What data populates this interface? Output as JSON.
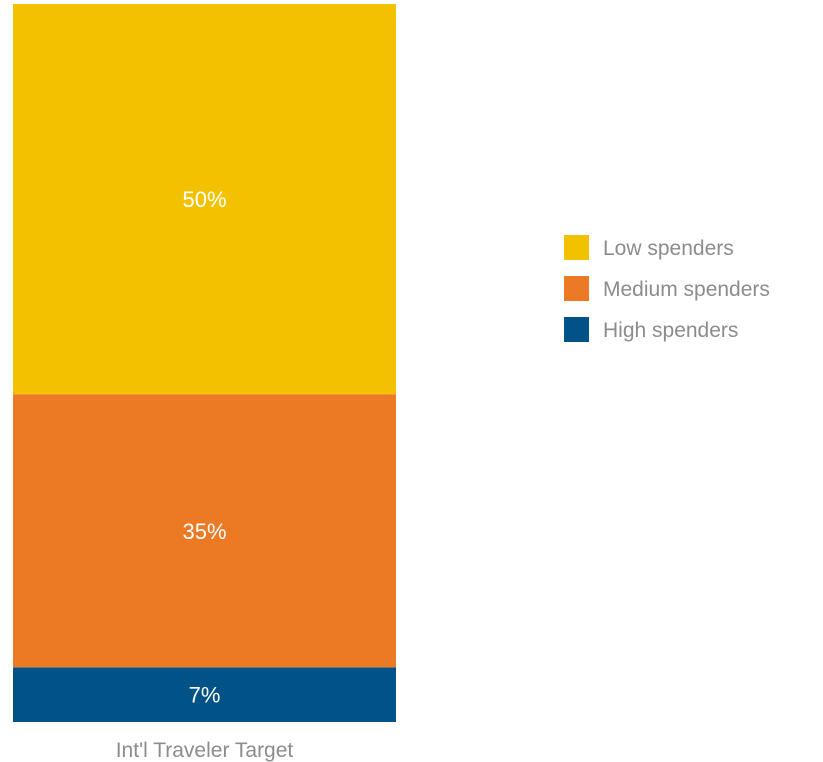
{
  "chart_data": {
    "type": "bar",
    "stacked": true,
    "categories": [
      "Int'l Traveler Target"
    ],
    "series": [
      {
        "name": "Low spenders",
        "values": [
          50
        ],
        "label": "50%",
        "color": "#f2c200"
      },
      {
        "name": "Medium spenders",
        "values": [
          35
        ],
        "label": "35%",
        "color": "#ec7a24"
      },
      {
        "name": "High spenders",
        "values": [
          7
        ],
        "label": "7%",
        "color": "#005287"
      }
    ],
    "unit": "%",
    "legend_position": "right",
    "grid": false
  }
}
